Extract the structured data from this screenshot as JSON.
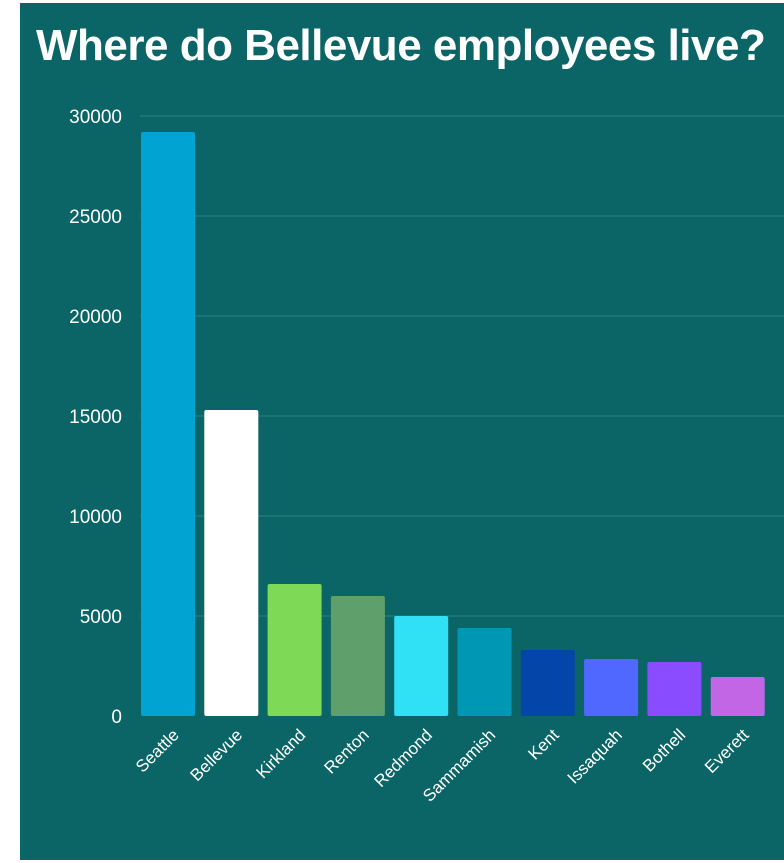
{
  "chart_data": {
    "type": "bar",
    "title": "Where do Bellevue employees live?",
    "xlabel": "",
    "ylabel": "",
    "categories": [
      "Seattle",
      "Bellevue",
      "Kirkland",
      "Renton",
      "Redmond",
      "Sammamish",
      "Kent",
      "Issaquah",
      "Bothell",
      "Everett"
    ],
    "values": [
      29200,
      15300,
      6600,
      6000,
      5000,
      4400,
      3300,
      2850,
      2700,
      1950
    ],
    "colors": [
      "#00a3d2",
      "#ffffff",
      "#7ed957",
      "#5e9f6c",
      "#30e0f5",
      "#0097b5",
      "#0445a9",
      "#5068ff",
      "#8a4cff",
      "#c266e6"
    ],
    "ylim": [
      0,
      30000
    ],
    "yticks": [
      0,
      5000,
      10000,
      15000,
      20000,
      25000,
      30000
    ],
    "grid": true,
    "legend": "none",
    "background": "#0b6466",
    "gridline_color": "#2e8283"
  }
}
